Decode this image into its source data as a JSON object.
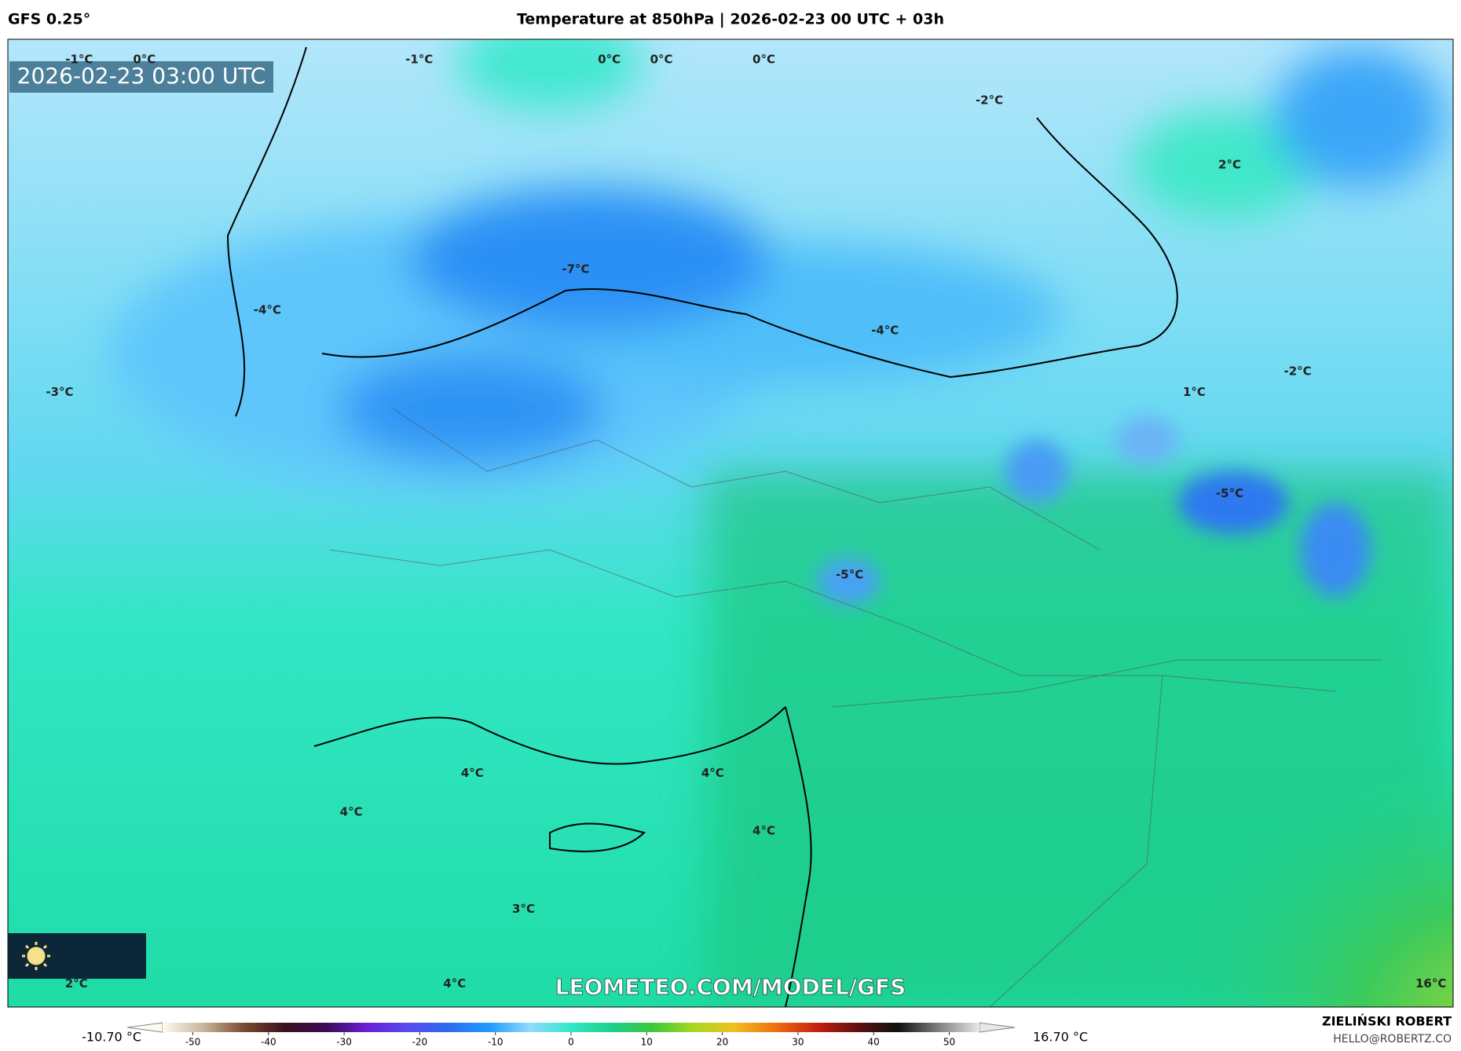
{
  "header": {
    "model": "GFS 0.25°",
    "title": "Temperature at 850hPa | 2026-02-23 00 UTC + 03h"
  },
  "map": {
    "timestamp": "2026-02-23 03:00 UTC",
    "labels": [
      "-1°C",
      "0°C",
      "-1°C",
      "0°C",
      "0°C",
      "0°C",
      "-2°C",
      "2°C",
      "-7°C",
      "-4°C",
      "-4°C",
      "-3°C",
      "1°C",
      "-2°C",
      "-5°C",
      "-5°C",
      "4°C",
      "4°C",
      "4°C",
      "4°C",
      "3°C",
      "2°C",
      "4°C",
      "16°C"
    ],
    "watermark": "LEOMETEO.COM/MODEL/GFS"
  },
  "colorbar": {
    "min_label": "-10.70 °C",
    "max_label": "16.70 °C",
    "range": [
      -54,
      54
    ],
    "ticks": [
      -50,
      -40,
      -30,
      -20,
      -10,
      0,
      10,
      20,
      30,
      40,
      50
    ],
    "colors": [
      "#fdfbf0",
      "#c8b59a",
      "#7a4b2e",
      "#3a1020",
      "#3b0a55",
      "#6a1fd6",
      "#5a4af0",
      "#2a6cf0",
      "#1e9cff",
      "#8fdcff",
      "#30e8c8",
      "#1ecf8a",
      "#3cc83c",
      "#a8d820",
      "#f0c020",
      "#f07010",
      "#c82010",
      "#601010",
      "#101010",
      "#808080",
      "#e8e8e8"
    ]
  },
  "author": {
    "name": "ZIELIŃSKI ROBERT",
    "email": "HELLO@ROBERTZ.CO"
  }
}
